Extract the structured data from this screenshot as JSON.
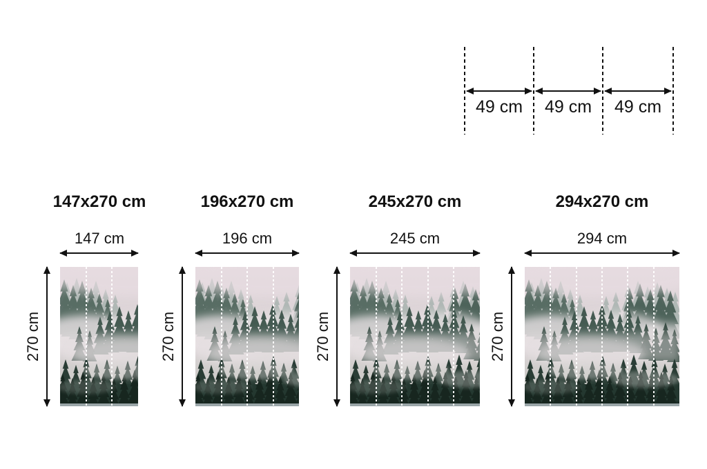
{
  "panel_diagram": {
    "segments": [
      {
        "label": "49 cm"
      },
      {
        "label": "49 cm"
      },
      {
        "label": "49 cm"
      }
    ]
  },
  "products": [
    {
      "title": "147x270 cm",
      "width_label": "147 cm",
      "height_label": "270 cm",
      "panels": 3
    },
    {
      "title": "196x270 cm",
      "width_label": "196 cm",
      "height_label": "270 cm",
      "panels": 4
    },
    {
      "title": "245x270 cm",
      "width_label": "245 cm",
      "height_label": "270 cm",
      "panels": 5
    },
    {
      "title": "294x270 cm",
      "width_label": "294 cm",
      "height_label": "270 cm",
      "panels": 6
    }
  ],
  "colors": {
    "text": "#111111",
    "arrow": "#111111",
    "panel_divider": "#ffffff",
    "sky_top": "#e4d9de",
    "sky_mid": "#d9d2d4",
    "fog": "#e8e2e4",
    "tree_haze": "#8ba199",
    "tree_mid": "#3d544b",
    "tree_dark": "#253931",
    "tree_darkest": "#17261f",
    "bottom_strip": "#9aa6a8"
  }
}
